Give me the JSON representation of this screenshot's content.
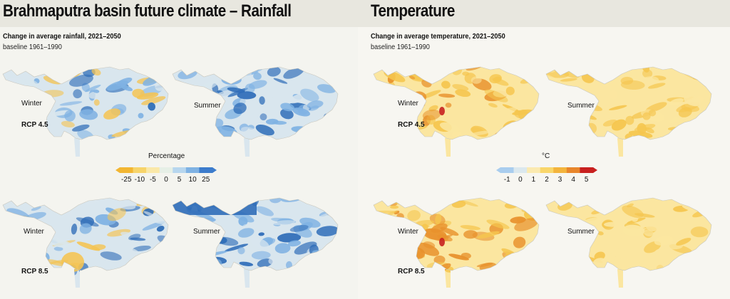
{
  "rainfall": {
    "title": "Brahmaputra basin future climate – Rainfall",
    "subtitle": "Change in average rainfall, 2021–2050",
    "baseline": "baseline 1961–1990",
    "legend_title": "Percentage",
    "legend_ticks": [
      "-25",
      "-10",
      "-5",
      "0",
      "5",
      "10",
      "25"
    ],
    "legend_colors": [
      "#f2b632",
      "#f7d46a",
      "#fae8a8",
      "#e6efe6",
      "#b7d6ee",
      "#7fb2e3",
      "#3c7ccc"
    ]
  },
  "temperature": {
    "title": "Temperature",
    "subtitle": "Change in average  temperature, 2021–2050",
    "baseline": "baseline 1961–1990",
    "legend_title": "°C",
    "legend_ticks": [
      "-1",
      "0",
      "1",
      "2",
      "3",
      "4",
      "5"
    ],
    "legend_colors": [
      "#a9cdee",
      "#dbe8ee",
      "#fbeab0",
      "#f9d66a",
      "#f3b43d",
      "#e8862c",
      "#c8201f"
    ]
  },
  "maps": [
    {
      "variable": "rainfall",
      "scenario": "RCP 4.5",
      "season": "Winter"
    },
    {
      "variable": "rainfall",
      "scenario": "RCP 4.5",
      "season": "Summer"
    },
    {
      "variable": "rainfall",
      "scenario": "RCP 8.5",
      "season": "Winter"
    },
    {
      "variable": "rainfall",
      "scenario": "RCP 8.5",
      "season": "Summer"
    },
    {
      "variable": "temperature",
      "scenario": "RCP 4.5",
      "season": "Winter"
    },
    {
      "variable": "temperature",
      "scenario": "RCP 4.5",
      "season": "Summer"
    },
    {
      "variable": "temperature",
      "scenario": "RCP 8.5",
      "season": "Winter"
    },
    {
      "variable": "temperature",
      "scenario": "RCP 8.5",
      "season": "Summer"
    }
  ],
  "colors": {
    "rain_base": "#d9e6ee",
    "rain_wet": "#7fb2e3",
    "rain_very_wet": "#2f6db8",
    "rain_dry": "#f4c454",
    "temp_base": "#fbe6a0",
    "temp_warm": "#f5c64f",
    "temp_hot": "#e8912c",
    "temp_extreme": "#c8201f"
  }
}
